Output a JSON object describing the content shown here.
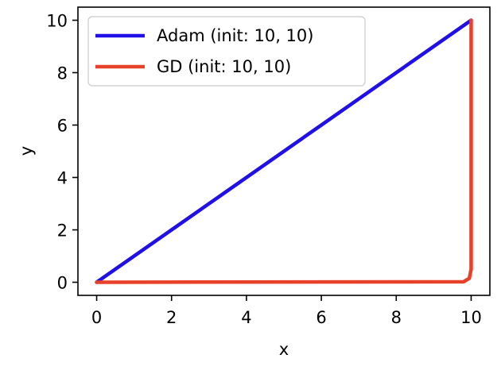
{
  "chart_data": {
    "type": "line",
    "title": "",
    "xlabel": "x",
    "ylabel": "y",
    "xlim": [
      -0.5,
      10.5
    ],
    "ylim": [
      -0.5,
      10.5
    ],
    "xticks": [
      0,
      2,
      4,
      6,
      8,
      10
    ],
    "yticks": [
      0,
      2,
      4,
      6,
      8,
      10
    ],
    "xtick_labels": [
      "0",
      "2",
      "4",
      "6",
      "8",
      "10"
    ],
    "ytick_labels": [
      "0",
      "2",
      "4",
      "6",
      "8",
      "10"
    ],
    "grid": false,
    "legend_position": "top-left",
    "series": [
      {
        "name": "Adam (init: 10, 10)",
        "color": "#1f0fe8",
        "x": [
          10,
          8,
          6,
          4,
          2,
          0
        ],
        "y": [
          10,
          8,
          6,
          4,
          2,
          0
        ]
      },
      {
        "name": "GD (init: 10, 10)",
        "color": "#e8412a",
        "x": [
          10,
          10,
          10,
          10,
          9.95,
          9.8,
          0
        ],
        "y": [
          10,
          5,
          2,
          0.5,
          0.15,
          0.02,
          0
        ]
      }
    ]
  }
}
